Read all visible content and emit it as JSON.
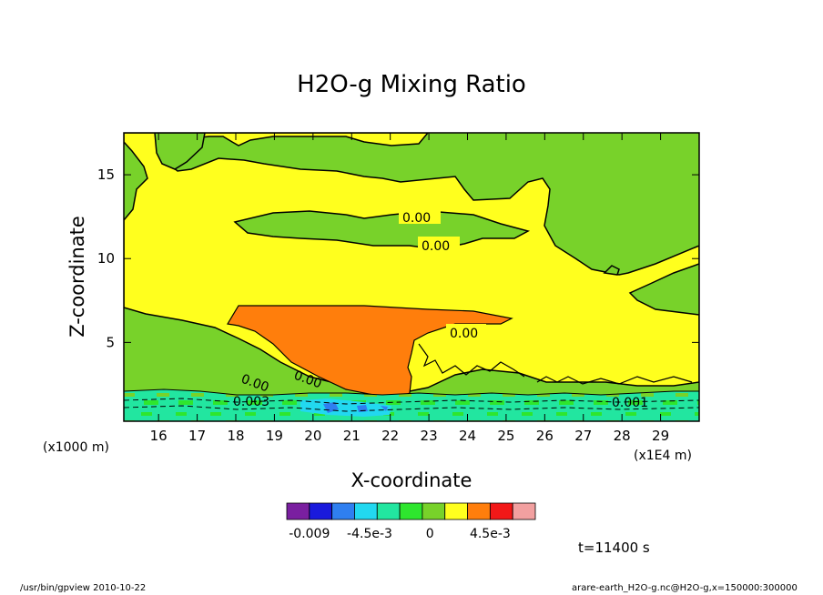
{
  "chart_data": {
    "type": "heatmap",
    "title": "H2O-g Mixing Ratio",
    "xlabel": "X-coordinate",
    "ylabel": "Z-coordinate",
    "x_unit": "(x1E4 m)",
    "y_unit": "(x1000 m)",
    "xlim": [
      15.1,
      30
    ],
    "ylim": [
      0.3,
      17.5
    ],
    "x_ticks": [
      16,
      17,
      18,
      19,
      20,
      21,
      22,
      23,
      24,
      25,
      26,
      27,
      28,
      29
    ],
    "y_ticks": [
      5,
      10,
      15
    ],
    "colorbar": {
      "colors": [
        "#7a1fa0",
        "#1a1adc",
        "#2f7ff0",
        "#22d8f0",
        "#22e6a0",
        "#2ee62e",
        "#78d22a",
        "#ffff1e",
        "#ff7e0c",
        "#f21818",
        "#f2a0a0"
      ],
      "tick_labels": [
        "-0.009",
        "-4.5e-3",
        "0",
        "4.5e-3"
      ],
      "tick_values": [
        -0.009,
        -0.0045,
        0,
        0.0045
      ]
    },
    "contour_labels": [
      "0.00",
      "0.00",
      "0.00",
      "0.00",
      "0.00",
      "0.003",
      "0.001"
    ],
    "time": "t=11400 s"
  },
  "footer": {
    "left": "/usr/bin/gpview   2010-10-22",
    "right": "arare-earth_H2O-g.nc@H2O-g,x=150000:300000"
  }
}
